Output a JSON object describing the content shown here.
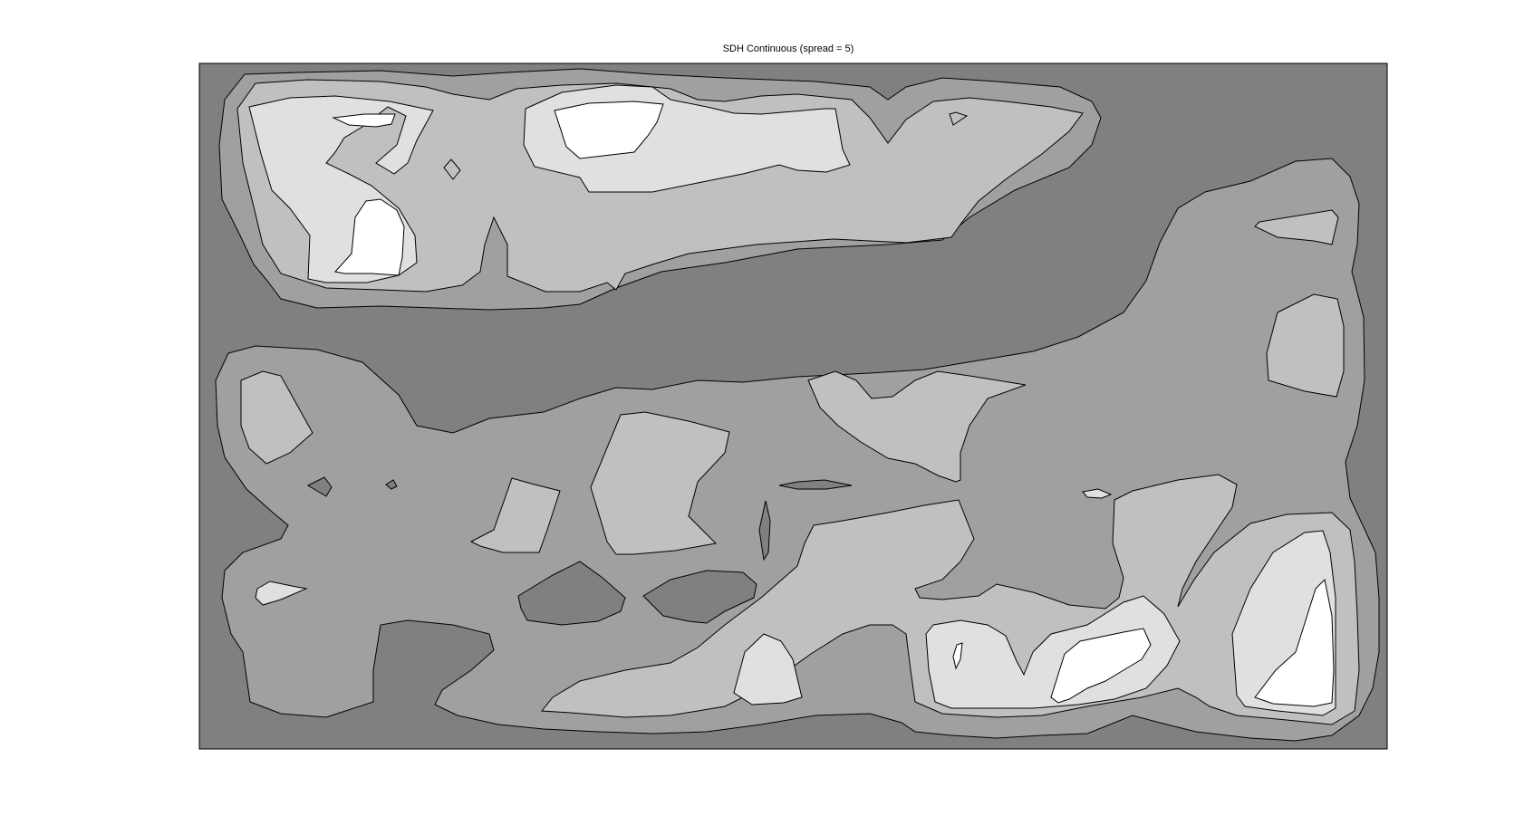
{
  "chart_data": {
    "type": "contour",
    "title": "SDH Continuous (spread = 5)",
    "xlabel": "",
    "ylabel": "",
    "grid": false,
    "legend": "none",
    "filled": true,
    "colormap": "gray",
    "levels": [
      {
        "level": 1,
        "color": "#808080"
      },
      {
        "level": 2,
        "color": "#a0a0a0"
      },
      {
        "level": 3,
        "color": "#c0c0c0"
      },
      {
        "level": 4,
        "color": "#e0e0e0"
      },
      {
        "level": 5,
        "color": "#ffffff"
      }
    ]
  },
  "colors": {
    "background": "#ffffff",
    "line": "#000000"
  }
}
